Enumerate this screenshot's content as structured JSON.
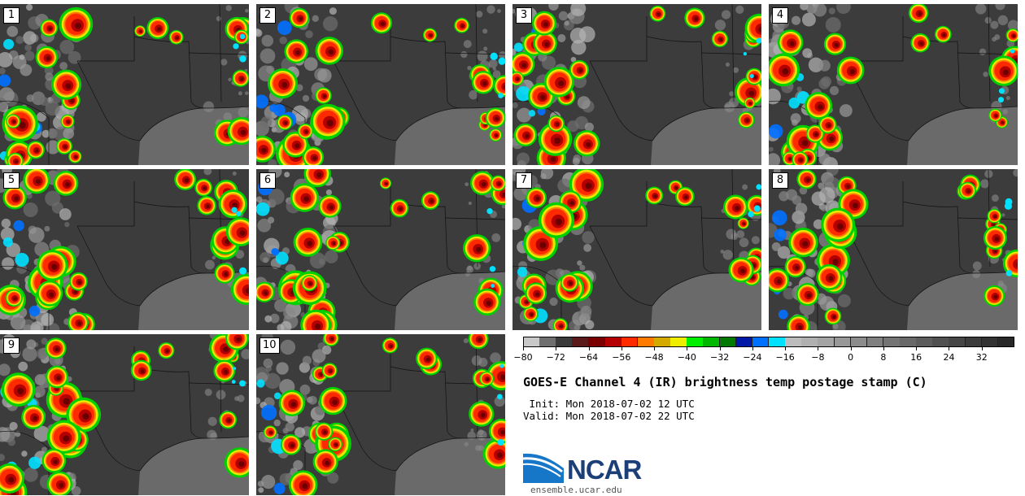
{
  "panels": [
    {
      "label": "1"
    },
    {
      "label": "2"
    },
    {
      "label": "3"
    },
    {
      "label": "4"
    },
    {
      "label": "5"
    },
    {
      "label": "6"
    },
    {
      "label": "7"
    },
    {
      "label": "8"
    },
    {
      "label": "9"
    },
    {
      "label": "10"
    }
  ],
  "colorbar": {
    "tick_labels": [
      "−80",
      "−72",
      "−64",
      "−56",
      "−48",
      "−40",
      "−32",
      "−24",
      "−16",
      "−8",
      "0",
      "8",
      "16",
      "24",
      "32"
    ],
    "colors": [
      "#c8c8c8",
      "#6e6e6e",
      "#3a3a3a",
      "#5a1a1a",
      "#7a0000",
      "#b40000",
      "#ff2a00",
      "#ff7a00",
      "#d4aa00",
      "#eeee00",
      "#00ee00",
      "#00b800",
      "#007a00",
      "#0018a8",
      "#0070ff",
      "#00e0ff",
      "#bcbcbc",
      "#b0b0b0",
      "#a4a4a4",
      "#989898",
      "#8c8c8c",
      "#808080",
      "#747474",
      "#686868",
      "#5c5c5c",
      "#505050",
      "#464646",
      "#3c3c3c",
      "#323232",
      "#282828"
    ]
  },
  "title": "GOES-E Channel 4 (IR) brightness temp postage stamp (C)",
  "init_line": " Init: Mon 2018-07-02 12 UTC",
  "valid_line": "Valid: Mon 2018-07-02 22 UTC",
  "logo": {
    "text": "NCAR",
    "url": "ensemble.ucar.edu"
  }
}
